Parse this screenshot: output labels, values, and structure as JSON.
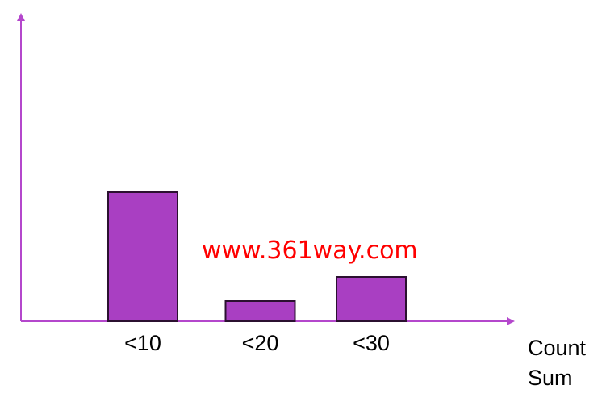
{
  "chart_data": {
    "type": "bar",
    "categories": [
      "<10",
      "<20",
      "<30"
    ],
    "values": [
      160,
      25,
      55
    ],
    "title": "",
    "xlabel": "",
    "ylabel": "",
    "ylim": [
      0,
      380
    ],
    "grid": false,
    "legend": "none",
    "side_labels": [
      "Count",
      "Sum"
    ],
    "bar_color": "#a93fc2",
    "bar_stroke": "#2b1030",
    "axis_color": "#b447cc"
  },
  "watermark": "www.361way.com"
}
